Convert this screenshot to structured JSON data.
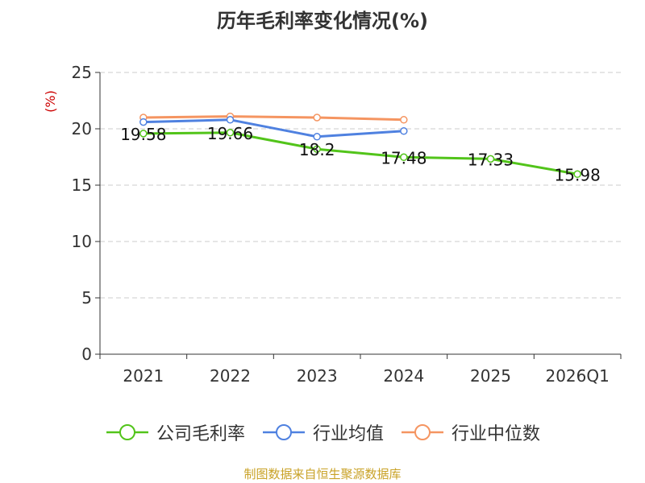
{
  "title": "历年毛利率变化情况(%)",
  "source": "制图数据来自恒生聚源数据库",
  "chart_data": {
    "type": "line",
    "title": "历年毛利率变化情况(%)",
    "ylabel": "(%)",
    "ylim": [
      0,
      25
    ],
    "yticks": [
      0,
      5,
      10,
      15,
      20,
      25
    ],
    "grid": true,
    "legend_position": "bottom",
    "categories": [
      "2021",
      "2022",
      "2023",
      "2024",
      "2025",
      "2026Q1"
    ],
    "series": [
      {
        "name": "公司毛利率",
        "color": "#52c41a",
        "values": [
          19.58,
          19.66,
          18.2,
          17.48,
          17.33,
          15.98
        ],
        "labels": [
          "19.58",
          "19.66",
          "18.2",
          "17.48",
          "17.33",
          "15.98"
        ]
      },
      {
        "name": "行业均值",
        "color": "#4f81e0",
        "values": [
          20.6,
          20.8,
          19.3,
          19.8,
          null,
          null
        ]
      },
      {
        "name": "行业中位数",
        "color": "#f59561",
        "values": [
          21.0,
          21.1,
          21.0,
          20.8,
          null,
          null
        ]
      }
    ]
  }
}
